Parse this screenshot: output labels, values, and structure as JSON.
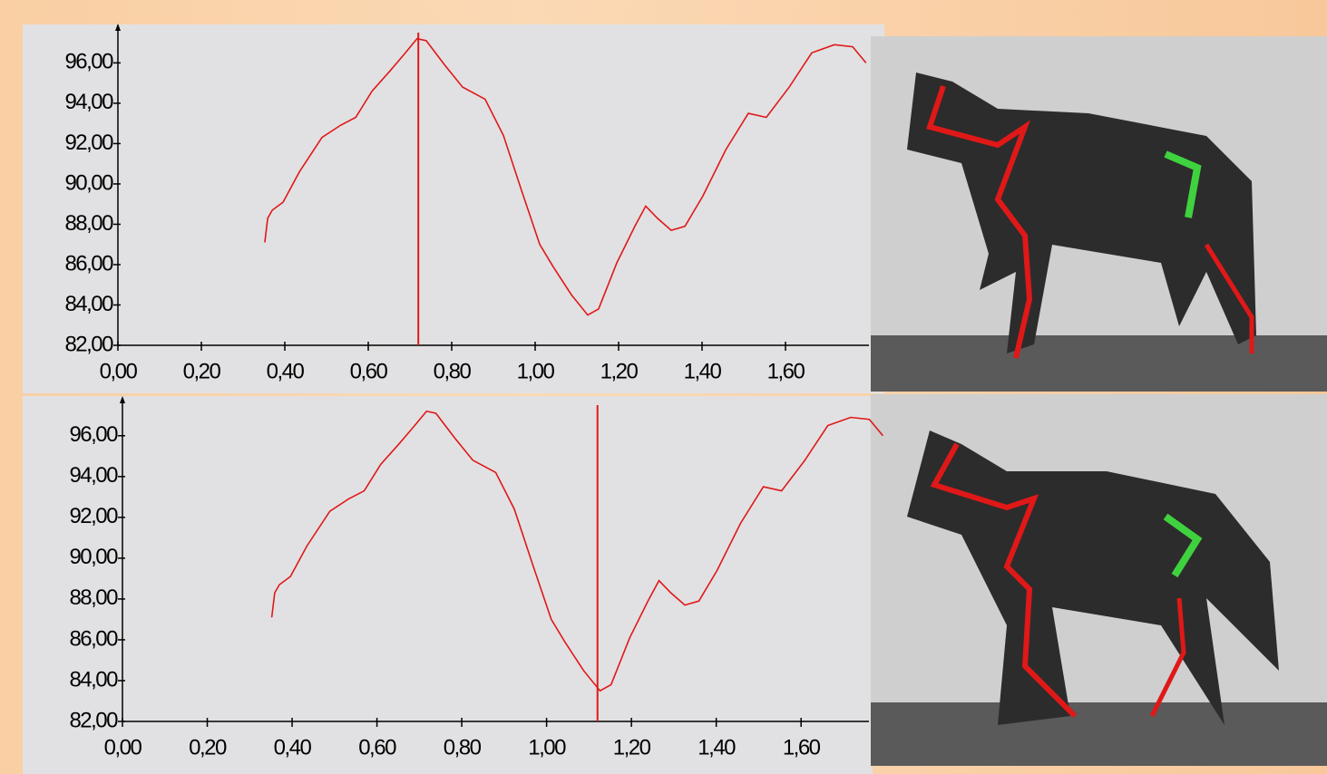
{
  "chart_data": [
    {
      "type": "line",
      "color": "#e01818",
      "x": [
        0.352,
        0.359,
        0.37,
        0.396,
        0.435,
        0.489,
        0.533,
        0.57,
        0.609,
        0.652,
        0.685,
        0.717,
        0.739,
        0.783,
        0.826,
        0.88,
        0.924,
        0.967,
        1.011,
        1.043,
        1.087,
        1.126,
        1.152,
        1.196,
        1.239,
        1.265,
        1.293,
        1.326,
        1.359,
        1.402,
        1.457,
        1.511,
        1.554,
        1.609,
        1.663,
        1.717,
        1.761,
        1.793
      ],
      "values": [
        87.1,
        88.3,
        88.7,
        89.1,
        90.6,
        92.3,
        92.9,
        93.3,
        94.6,
        95.6,
        96.4,
        97.2,
        97.1,
        95.9,
        94.8,
        94.2,
        92.4,
        89.7,
        87.0,
        85.9,
        84.5,
        83.5,
        83.8,
        86.1,
        87.9,
        88.9,
        88.3,
        87.7,
        87.9,
        89.4,
        91.7,
        93.5,
        93.3,
        94.8,
        96.5,
        96.9,
        96.8,
        96.0
      ],
      "cursor_x": 0.72,
      "xlim": [
        0,
        1.8
      ],
      "ylim": [
        82,
        97.5
      ],
      "xticks": [
        {
          "value": 0,
          "label": "0,00"
        },
        {
          "value": 0.2,
          "label": "0,20"
        },
        {
          "value": 0.4,
          "label": "0,40"
        },
        {
          "value": 0.6,
          "label": "0,60"
        },
        {
          "value": 0.8,
          "label": "0,80"
        },
        {
          "value": 1.0,
          "label": "1,00"
        },
        {
          "value": 1.2,
          "label": "1,20"
        },
        {
          "value": 1.4,
          "label": "1,40"
        },
        {
          "value": 1.6,
          "label": "1,60"
        }
      ],
      "yticks": [
        {
          "value": 82,
          "label": "82,00"
        },
        {
          "value": 84,
          "label": "84,00"
        },
        {
          "value": 86,
          "label": "86,00"
        },
        {
          "value": 88,
          "label": "88,00"
        },
        {
          "value": 90,
          "label": "90,00"
        },
        {
          "value": 92,
          "label": "92,00"
        },
        {
          "value": 94,
          "label": "94,00"
        },
        {
          "value": 96,
          "label": "96,00"
        }
      ]
    },
    {
      "type": "line",
      "color": "#e01818",
      "x": [
        0.352,
        0.359,
        0.37,
        0.396,
        0.435,
        0.489,
        0.533,
        0.57,
        0.609,
        0.652,
        0.685,
        0.717,
        0.739,
        0.783,
        0.826,
        0.88,
        0.924,
        0.967,
        1.011,
        1.043,
        1.087,
        1.126,
        1.152,
        1.196,
        1.239,
        1.265,
        1.293,
        1.326,
        1.359,
        1.402,
        1.457,
        1.511,
        1.554,
        1.609,
        1.663,
        1.717,
        1.761,
        1.793
      ],
      "values": [
        87.1,
        88.3,
        88.7,
        89.1,
        90.6,
        92.3,
        92.9,
        93.3,
        94.6,
        95.6,
        96.4,
        97.2,
        97.1,
        95.9,
        94.8,
        94.2,
        92.4,
        89.7,
        87.0,
        85.9,
        84.5,
        83.5,
        83.8,
        86.1,
        87.9,
        88.9,
        88.3,
        87.7,
        87.9,
        89.4,
        91.7,
        93.5,
        93.3,
        94.8,
        96.5,
        96.9,
        96.8,
        96.0
      ],
      "cursor_x": 1.12,
      "xlim": [
        0,
        1.76
      ],
      "ylim": [
        82,
        97.5
      ],
      "xticks": [
        {
          "value": 0,
          "label": "0,00"
        },
        {
          "value": 0.2,
          "label": "0,20"
        },
        {
          "value": 0.4,
          "label": "0,40"
        },
        {
          "value": 0.6,
          "label": "0,60"
        },
        {
          "value": 0.8,
          "label": "0,80"
        },
        {
          "value": 1.0,
          "label": "1,00"
        },
        {
          "value": 1.2,
          "label": "1,20"
        },
        {
          "value": 1.4,
          "label": "1,40"
        },
        {
          "value": 1.6,
          "label": "1,60"
        }
      ],
      "yticks": [
        {
          "value": 82,
          "label": "82,00"
        },
        {
          "value": 84,
          "label": "84,00"
        },
        {
          "value": 86,
          "label": "86,00"
        },
        {
          "value": 88,
          "label": "88,00"
        },
        {
          "value": 90,
          "label": "90,00"
        },
        {
          "value": 92,
          "label": "92,00"
        },
        {
          "value": 94,
          "label": "94,00"
        },
        {
          "value": 96,
          "label": "96,00"
        }
      ]
    }
  ]
}
